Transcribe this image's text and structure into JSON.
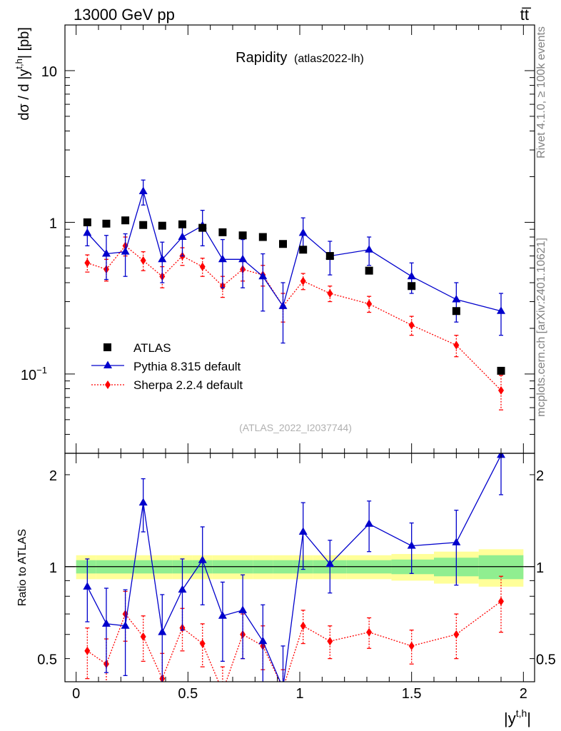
{
  "header": {
    "left": "13000 GeV pp",
    "right": "tt̅",
    "side_top": "Rivet 4.1.0, ≥ 100k events",
    "side_bottom": "mcplots.cern.ch [arXiv:2401.10621]"
  },
  "chart_data": [
    {
      "type": "scatter",
      "panel": "main",
      "title": "Rapidity",
      "subtitle": "(atlas2022-lh)",
      "watermark": "(ATLAS_2022_I2037744)",
      "xlabel": "|y",
      "xlabel_sup": "t,h",
      "xlabel_close": "|",
      "ylabel": "dσ / d |y",
      "ylabel_sup": "t,h",
      "ylabel_close": "| [pb]",
      "yscale": "log",
      "xlim": [
        -0.05,
        2.05
      ],
      "ylim": [
        0.03,
        20
      ],
      "yticks": [
        {
          "v": 0.1,
          "label": "10",
          "sup": "−1"
        },
        {
          "v": 1,
          "label": "1",
          "sup": ""
        },
        {
          "v": 10,
          "label": "10",
          "sup": ""
        }
      ],
      "legend": {
        "position": "lower-left",
        "entries": [
          "ATLAS",
          "Pythia 8.315 default",
          "Sherpa 2.2.4 default"
        ]
      },
      "series": [
        {
          "name": "ATLAS",
          "color": "#000000",
          "marker": "square",
          "x": [
            0.05,
            0.135,
            0.22,
            0.3,
            0.385,
            0.475,
            0.565,
            0.655,
            0.745,
            0.835,
            0.925,
            1.015,
            1.135,
            1.31,
            1.5,
            1.7,
            1.9
          ],
          "y": [
            1.0,
            0.98,
            1.03,
            0.96,
            0.95,
            0.97,
            0.92,
            0.86,
            0.82,
            0.8,
            0.72,
            0.66,
            0.6,
            0.48,
            0.38,
            0.26,
            0.105
          ]
        },
        {
          "name": "Pythia 8.315 default",
          "color": "#0000cc",
          "marker": "triangle",
          "line": "solid",
          "x": [
            0.05,
            0.135,
            0.22,
            0.3,
            0.385,
            0.475,
            0.565,
            0.655,
            0.745,
            0.835,
            0.925,
            1.015,
            1.135,
            1.31,
            1.5,
            1.7,
            1.9
          ],
          "y": [
            0.85,
            0.62,
            0.64,
            1.6,
            0.57,
            0.8,
            0.95,
            0.57,
            0.57,
            0.44,
            0.28,
            0.85,
            0.6,
            0.66,
            0.44,
            0.31,
            0.26
          ],
          "err": [
            0.15,
            0.2,
            0.2,
            0.3,
            0.17,
            0.2,
            0.25,
            0.2,
            0.2,
            0.18,
            0.12,
            0.22,
            0.15,
            0.14,
            0.1,
            0.09,
            0.08
          ]
        },
        {
          "name": "Sherpa 2.2.4 default",
          "color": "#ff0000",
          "marker": "diamond",
          "line": "dotted",
          "x": [
            0.05,
            0.135,
            0.22,
            0.3,
            0.385,
            0.475,
            0.565,
            0.655,
            0.745,
            0.835,
            0.925,
            1.015,
            1.135,
            1.31,
            1.5,
            1.7,
            1.9
          ],
          "y": [
            0.54,
            0.49,
            0.7,
            0.56,
            0.44,
            0.6,
            0.51,
            0.38,
            0.49,
            0.45,
            0.28,
            0.41,
            0.34,
            0.29,
            0.21,
            0.155,
            0.078
          ],
          "err": [
            0.07,
            0.08,
            0.1,
            0.08,
            0.07,
            0.08,
            0.07,
            0.06,
            0.08,
            0.07,
            0.06,
            0.05,
            0.04,
            0.035,
            0.03,
            0.025,
            0.02
          ]
        }
      ]
    },
    {
      "type": "scatter",
      "panel": "ratio",
      "ylabel": "Ratio to ATLAS",
      "yscale": "log",
      "xlim": [
        -0.05,
        2.05
      ],
      "ylim": [
        0.42,
        2.35
      ],
      "xticks": [
        0,
        0.5,
        1,
        1.5,
        2
      ],
      "xtick_labels": [
        "0",
        "0.5",
        "1",
        "1.5",
        "2"
      ],
      "yticks": [
        0.5,
        1,
        2
      ],
      "ytick_labels": [
        "0.5",
        "1",
        "2"
      ],
      "bands": {
        "edges": [
          0,
          0.09,
          0.175,
          0.26,
          0.345,
          0.43,
          0.52,
          0.61,
          0.7,
          0.79,
          0.88,
          0.97,
          1.06,
          1.21,
          1.41,
          1.6,
          1.8,
          2.0
        ],
        "inner": [
          0.05,
          0.05,
          0.05,
          0.05,
          0.05,
          0.05,
          0.05,
          0.05,
          0.05,
          0.05,
          0.05,
          0.05,
          0.05,
          0.05,
          0.055,
          0.07,
          0.09
        ],
        "outer": [
          0.09,
          0.09,
          0.09,
          0.09,
          0.09,
          0.09,
          0.09,
          0.09,
          0.09,
          0.09,
          0.09,
          0.09,
          0.09,
          0.09,
          0.1,
          0.12,
          0.14
        ],
        "inner_color": "#90ee90",
        "outer_color": "#ffff99"
      },
      "series": [
        {
          "name": "Pythia 8.315 default",
          "color": "#0000cc",
          "marker": "triangle",
          "line": "solid",
          "x": [
            0.05,
            0.135,
            0.22,
            0.3,
            0.385,
            0.475,
            0.565,
            0.655,
            0.745,
            0.835,
            0.925,
            1.015,
            1.135,
            1.31,
            1.5,
            1.7,
            1.9
          ],
          "y": [
            0.86,
            0.65,
            0.64,
            1.62,
            0.61,
            0.84,
            1.05,
            0.69,
            0.72,
            0.57,
            0.4,
            1.3,
            1.02,
            1.38,
            1.17,
            1.2,
            2.32
          ],
          "err": [
            0.2,
            0.2,
            0.2,
            0.32,
            0.2,
            0.22,
            0.3,
            0.2,
            0.22,
            0.18,
            0.15,
            0.32,
            0.2,
            0.26,
            0.22,
            0.33,
            0.6
          ]
        },
        {
          "name": "Sherpa 2.2.4 default",
          "color": "#ff0000",
          "marker": "diamond",
          "line": "dotted",
          "x": [
            0.05,
            0.135,
            0.22,
            0.3,
            0.385,
            0.475,
            0.565,
            0.655,
            0.745,
            0.835,
            0.925,
            1.015,
            1.135,
            1.31,
            1.5,
            1.7,
            1.9
          ],
          "y": [
            0.53,
            0.48,
            0.7,
            0.59,
            0.43,
            0.63,
            0.56,
            0.39,
            0.6,
            0.55,
            0.4,
            0.64,
            0.57,
            0.61,
            0.55,
            0.6,
            0.77
          ],
          "err": [
            0.1,
            0.1,
            0.13,
            0.1,
            0.09,
            0.1,
            0.09,
            0.08,
            0.1,
            0.09,
            0.06,
            0.08,
            0.07,
            0.07,
            0.07,
            0.1,
            0.16
          ]
        }
      ]
    }
  ]
}
